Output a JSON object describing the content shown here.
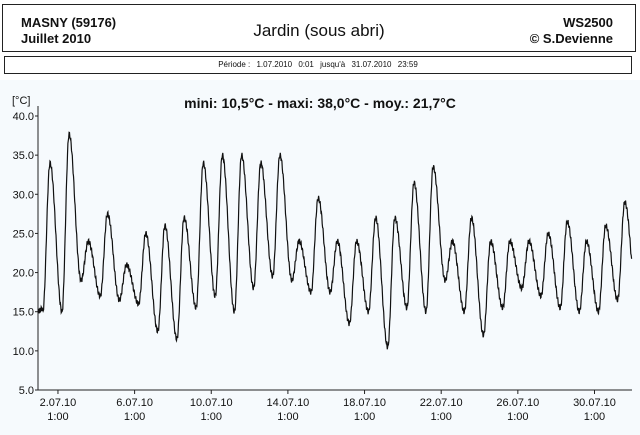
{
  "header": {
    "station": "MASNY (59176)",
    "month": "Juillet  2010",
    "title": "Jardin (sous abri)",
    "device": "WS2500",
    "copyright": "© S.Devienne"
  },
  "period": {
    "label": "Période :",
    "start_date": "1.07.2010",
    "start_time": "0:01",
    "until": "jusqu'à",
    "end_date": "31.07.2010",
    "end_time": "23:59"
  },
  "colors": {
    "line": "#111111",
    "background": "#f6fafd"
  },
  "chart_data": {
    "type": "line",
    "title": "mini: 10,5°C - maxi: 38,0°C - moy.: 21,7°C",
    "ylabel": "[°C]",
    "ylim": [
      5.0,
      40.0
    ],
    "yticks": [
      "5.0",
      "10.0",
      "15.0",
      "20.0",
      "25.0",
      "30.0",
      "35.0",
      "40.0"
    ],
    "xlim": [
      "2010-07-01T00:00",
      "2010-07-31T23:59"
    ],
    "xticks": [
      {
        "date": "2.07.10",
        "time": "1:00",
        "x": "2010-07-02T01:00"
      },
      {
        "date": "6.07.10",
        "time": "1:00",
        "x": "2010-07-06T01:00"
      },
      {
        "date": "10.07.10",
        "time": "1:00",
        "x": "2010-07-10T01:00"
      },
      {
        "date": "14.07.10",
        "time": "1:00",
        "x": "2010-07-14T01:00"
      },
      {
        "date": "18.07.10",
        "time": "1:00",
        "x": "2010-07-18T01:00"
      },
      {
        "date": "22.07.10",
        "time": "1:00",
        "x": "2010-07-22T01:00"
      },
      {
        "date": "26.07.10",
        "time": "1:00",
        "x": "2010-07-26T01:00"
      },
      {
        "date": "30.07.10",
        "time": "1:00",
        "x": "2010-07-30T01:00"
      }
    ],
    "grid": false,
    "series": [
      {
        "daily": [
          {
            "day": "2010-07-01",
            "min": 15.0,
            "max": 34.0
          },
          {
            "day": "2010-07-02",
            "min": 15.0,
            "max": 37.7
          },
          {
            "day": "2010-07-03",
            "min": 19.0,
            "max": 24.0
          },
          {
            "day": "2010-07-04",
            "min": 17.0,
            "max": 27.5
          },
          {
            "day": "2010-07-05",
            "min": 16.5,
            "max": 21.0
          },
          {
            "day": "2010-07-06",
            "min": 16.0,
            "max": 25.0
          },
          {
            "day": "2010-07-07",
            "min": 12.5,
            "max": 26.0
          },
          {
            "day": "2010-07-08",
            "min": 11.5,
            "max": 27.0
          },
          {
            "day": "2010-07-09",
            "min": 15.5,
            "max": 34.0
          },
          {
            "day": "2010-07-10",
            "min": 17.0,
            "max": 35.0
          },
          {
            "day": "2010-07-11",
            "min": 15.0,
            "max": 35.0
          },
          {
            "day": "2010-07-12",
            "min": 18.0,
            "max": 34.0
          },
          {
            "day": "2010-07-13",
            "min": 19.5,
            "max": 35.0
          },
          {
            "day": "2010-07-14",
            "min": 19.0,
            "max": 24.0
          },
          {
            "day": "2010-07-15",
            "min": 17.5,
            "max": 29.5
          },
          {
            "day": "2010-07-16",
            "min": 17.5,
            "max": 24.0
          },
          {
            "day": "2010-07-17",
            "min": 13.5,
            "max": 24.0
          },
          {
            "day": "2010-07-18",
            "min": 15.0,
            "max": 27.0
          },
          {
            "day": "2010-07-19",
            "min": 10.5,
            "max": 27.0
          },
          {
            "day": "2010-07-20",
            "min": 15.5,
            "max": 31.5
          },
          {
            "day": "2010-07-21",
            "min": 15.0,
            "max": 33.5
          },
          {
            "day": "2010-07-22",
            "min": 19.0,
            "max": 24.0
          },
          {
            "day": "2010-07-23",
            "min": 15.0,
            "max": 27.0
          },
          {
            "day": "2010-07-24",
            "min": 12.0,
            "max": 24.0
          },
          {
            "day": "2010-07-25",
            "min": 15.5,
            "max": 24.0
          },
          {
            "day": "2010-07-26",
            "min": 18.0,
            "max": 24.0
          },
          {
            "day": "2010-07-27",
            "min": 17.0,
            "max": 25.0
          },
          {
            "day": "2010-07-28",
            "min": 15.5,
            "max": 26.5
          },
          {
            "day": "2010-07-29",
            "min": 15.0,
            "max": 24.0
          },
          {
            "day": "2010-07-30",
            "min": 15.0,
            "max": 26.0
          },
          {
            "day": "2010-07-31",
            "min": 16.5,
            "max": 29.0
          }
        ]
      }
    ]
  }
}
